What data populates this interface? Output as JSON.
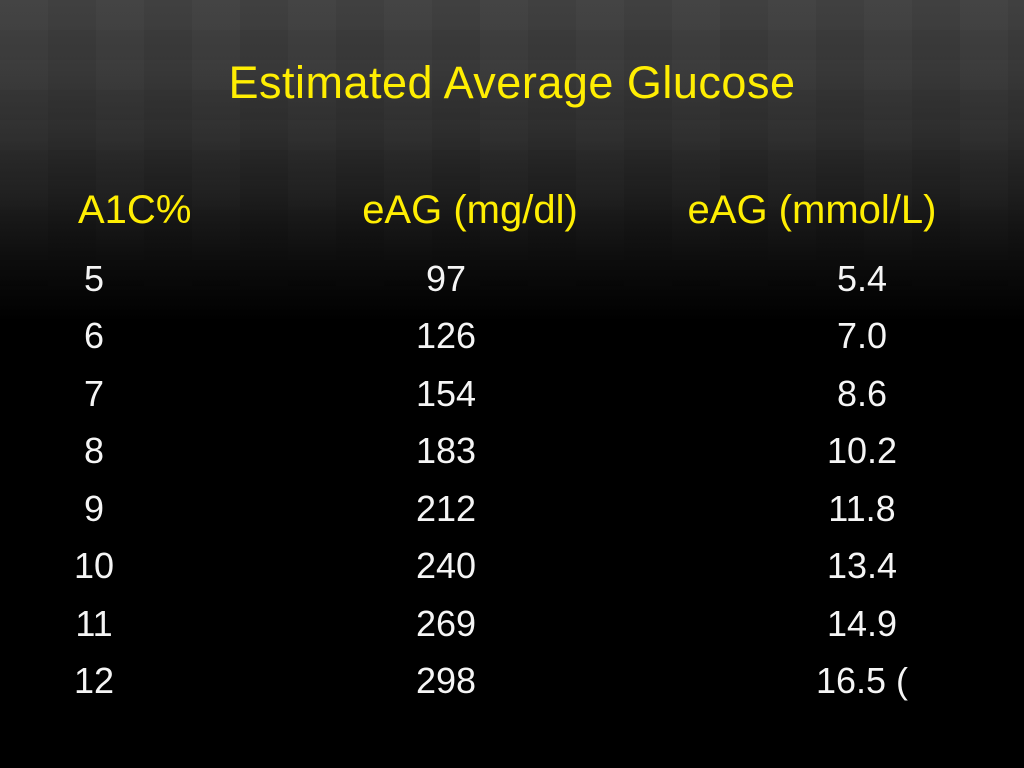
{
  "slide": {
    "title": "Estimated Average Glucose",
    "colors": {
      "title_yellow": "#ffee02",
      "header_yellow": "#ffee02",
      "value_white": "#f5f5f5",
      "background_top": "#3e3e3e",
      "background_bottom": "#000000"
    },
    "table": {
      "headers": [
        {
          "label": "A1C%"
        },
        {
          "label": "eAG (mg/dl)"
        },
        {
          "label": "eAG (mmol/L)"
        }
      ],
      "rows": [
        {
          "a1c": "5",
          "mg": "97",
          "mmol": "5.4"
        },
        {
          "a1c": "6",
          "mg": "126",
          "mmol": "7.0"
        },
        {
          "a1c": "7",
          "mg": "154",
          "mmol": "8.6"
        },
        {
          "a1c": "8",
          "mg": "183",
          "mmol": "10.2"
        },
        {
          "a1c": "9",
          "mg": "212",
          "mmol": "11.8"
        },
        {
          "a1c": "10",
          "mg": "240",
          "mmol": "13.4"
        },
        {
          "a1c": "11",
          "mg": "269",
          "mmol": "14.9"
        },
        {
          "a1c": "12",
          "mg": "298",
          "mmol": "16.5 ("
        }
      ]
    }
  }
}
